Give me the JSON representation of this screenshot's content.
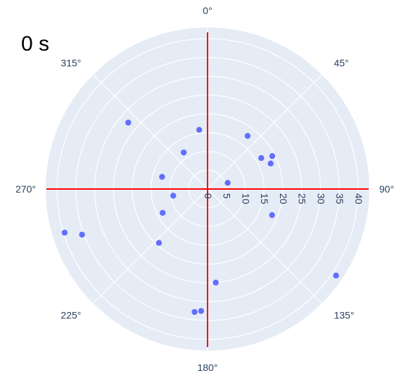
{
  "chart_data": {
    "type": "scatter",
    "subtype": "polar",
    "title": "0 s",
    "angular_axis": {
      "direction": "clockwise",
      "rotation": "0° at top",
      "ticks": [
        "0°",
        "45°",
        "90°",
        "135°",
        "180°",
        "225°",
        "270°",
        "315°"
      ]
    },
    "radial_axis": {
      "range": [
        0,
        43
      ],
      "tick_values": [
        0,
        5,
        10,
        15,
        20,
        25,
        30,
        35,
        40
      ],
      "tick_labels": [
        "0",
        "5",
        "10",
        "15",
        "20",
        "25",
        "30",
        "35",
        "40"
      ],
      "label_angle": "90°"
    },
    "grid": true,
    "crosshair_color": "#ff0000",
    "background_color": "#e5ecf6",
    "marker_color": "#636efa",
    "points": [
      {
        "r": 17.7,
        "theta": 37
      },
      {
        "r": 5.6,
        "theta": 73
      },
      {
        "r": 16.5,
        "theta": 60
      },
      {
        "r": 19.3,
        "theta": 63
      },
      {
        "r": 18.1,
        "theta": 68
      },
      {
        "r": 18.5,
        "theta": 112
      },
      {
        "r": 41.2,
        "theta": 124
      },
      {
        "r": 25.0,
        "theta": 175
      },
      {
        "r": 32.5,
        "theta": 183
      },
      {
        "r": 32.9,
        "theta": 186
      },
      {
        "r": 19.3,
        "theta": 222
      },
      {
        "r": 13.5,
        "theta": 242
      },
      {
        "r": 9.3,
        "theta": 259
      },
      {
        "r": 35.5,
        "theta": 250
      },
      {
        "r": 39.7,
        "theta": 253
      },
      {
        "r": 12.5,
        "theta": 285
      },
      {
        "r": 11.6,
        "theta": 327
      },
      {
        "r": 15.9,
        "theta": 352
      },
      {
        "r": 27.5,
        "theta": 310
      }
    ]
  }
}
